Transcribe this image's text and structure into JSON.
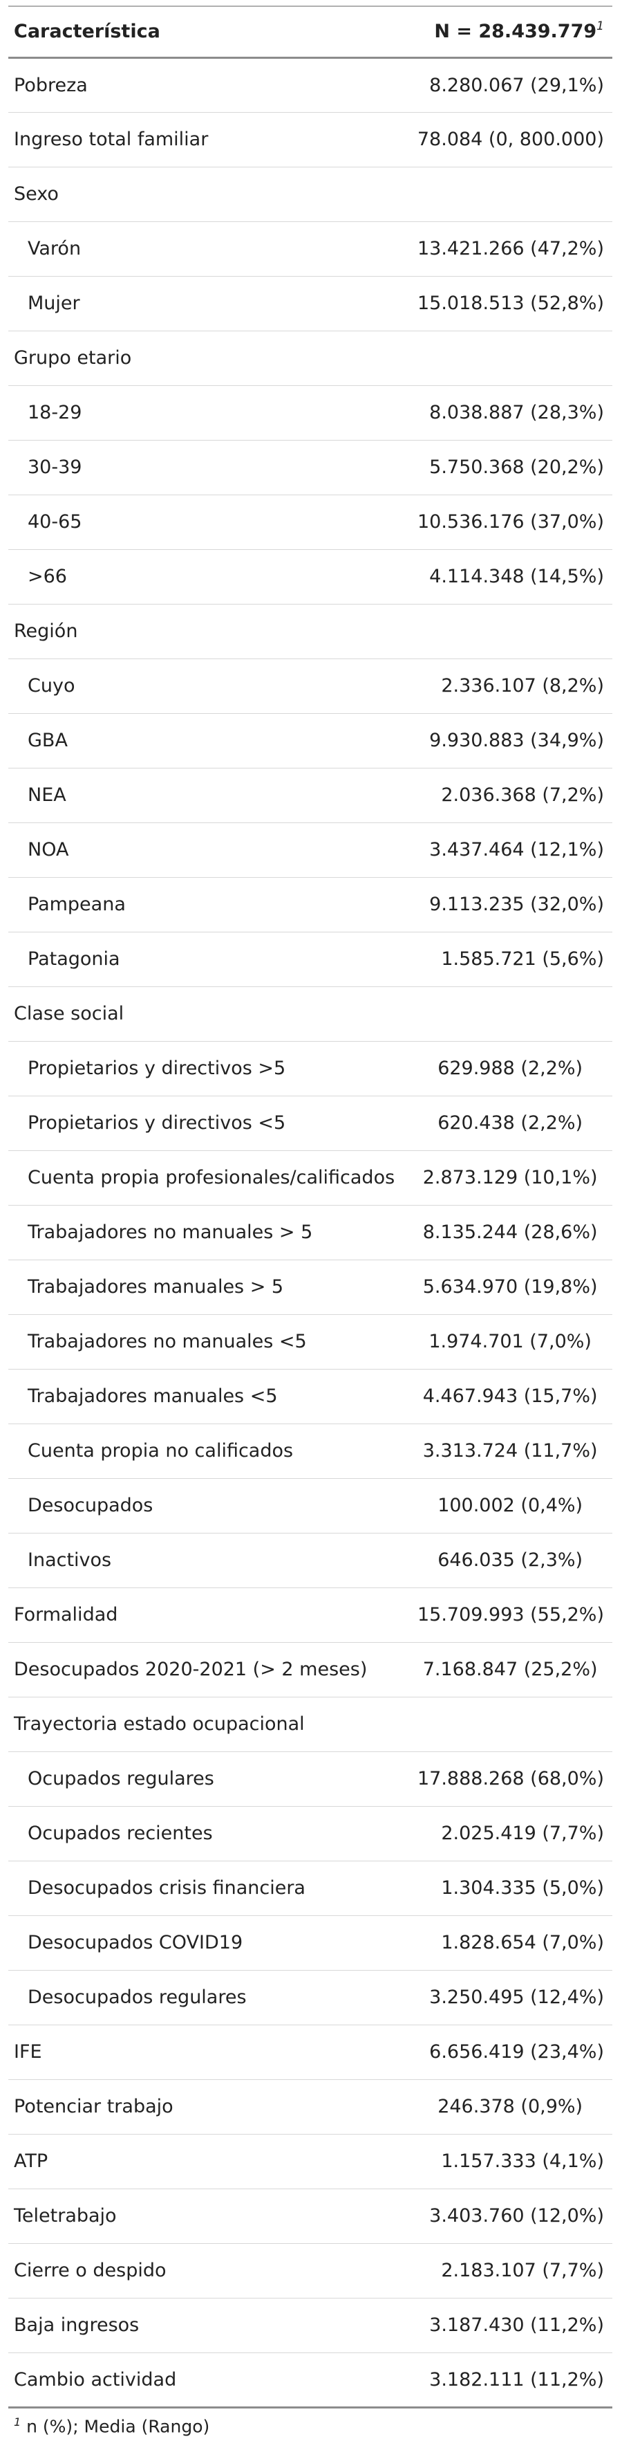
{
  "table": {
    "header": {
      "characteristic": "Característica",
      "total": "N = 28.439.779",
      "total_marker": "1"
    },
    "rows": [
      {
        "label": "Pobreza",
        "value": "8.280.067 (29,1%)",
        "indent": false,
        "align": "right"
      },
      {
        "label": "Ingreso total familiar",
        "value": "78.084 (0, 800.000)",
        "indent": false,
        "align": "right"
      },
      {
        "label": "Sexo",
        "value": "",
        "indent": false,
        "align": "right"
      },
      {
        "label": "Varón",
        "value": "13.421.266 (47,2%)",
        "indent": true,
        "align": "right"
      },
      {
        "label": "Mujer",
        "value": "15.018.513 (52,8%)",
        "indent": true,
        "align": "right"
      },
      {
        "label": "Grupo etario",
        "value": "",
        "indent": false,
        "align": "right"
      },
      {
        "label": "18-29",
        "value": "8.038.887 (28,3%)",
        "indent": true,
        "align": "right"
      },
      {
        "label": "30-39",
        "value": "5.750.368 (20,2%)",
        "indent": true,
        "align": "right"
      },
      {
        "label": "40-65",
        "value": "10.536.176 (37,0%)",
        "indent": true,
        "align": "right"
      },
      {
        "label": ">66",
        "value": "4.114.348 (14,5%)",
        "indent": true,
        "align": "right"
      },
      {
        "label": "Región",
        "value": "",
        "indent": false,
        "align": "right"
      },
      {
        "label": "Cuyo",
        "value": "2.336.107 (8,2%)",
        "indent": true,
        "align": "right"
      },
      {
        "label": "GBA",
        "value": "9.930.883 (34,9%)",
        "indent": true,
        "align": "right"
      },
      {
        "label": "NEA",
        "value": "2.036.368 (7,2%)",
        "indent": true,
        "align": "right"
      },
      {
        "label": "NOA",
        "value": "3.437.464 (12,1%)",
        "indent": true,
        "align": "right"
      },
      {
        "label": "Pampeana",
        "value": "9.113.235 (32,0%)",
        "indent": true,
        "align": "right"
      },
      {
        "label": "Patagonia",
        "value": "1.585.721 (5,6%)",
        "indent": true,
        "align": "right"
      },
      {
        "label": "Clase social",
        "value": "",
        "indent": false,
        "align": "right"
      },
      {
        "label": "Propietarios y directivos >5",
        "value": "629.988 (2,2%)",
        "indent": true,
        "align": "center"
      },
      {
        "label": "Propietarios y directivos <5",
        "value": "620.438 (2,2%)",
        "indent": true,
        "align": "center"
      },
      {
        "label": "Cuenta propia profesionales/calificados",
        "value": "2.873.129 (10,1%)",
        "indent": true,
        "align": "center"
      },
      {
        "label": "Trabajadores no manuales > 5",
        "value": "8.135.244 (28,6%)",
        "indent": true,
        "align": "center"
      },
      {
        "label": "Trabajadores manuales > 5",
        "value": "5.634.970 (19,8%)",
        "indent": true,
        "align": "center"
      },
      {
        "label": "Trabajadores no manuales <5",
        "value": "1.974.701 (7,0%)",
        "indent": true,
        "align": "center"
      },
      {
        "label": "Trabajadores manuales <5",
        "value": "4.467.943 (15,7%)",
        "indent": true,
        "align": "center"
      },
      {
        "label": "Cuenta propia no calificados",
        "value": "3.313.724 (11,7%)",
        "indent": true,
        "align": "center"
      },
      {
        "label": "Desocupados",
        "value": "100.002 (0,4%)",
        "indent": true,
        "align": "center"
      },
      {
        "label": "Inactivos",
        "value": "646.035 (2,3%)",
        "indent": true,
        "align": "center"
      },
      {
        "label": "Formalidad",
        "value": "15.709.993 (55,2%)",
        "indent": false,
        "align": "right"
      },
      {
        "label": "Desocupados 2020-2021 (> 2 meses)",
        "value": "7.168.847 (25,2%)",
        "indent": false,
        "align": "center"
      },
      {
        "label": "Trayectoria estado ocupacional",
        "value": "",
        "indent": false,
        "align": "right"
      },
      {
        "label": "Ocupados regulares",
        "value": "17.888.268 (68,0%)",
        "indent": true,
        "align": "right"
      },
      {
        "label": "Ocupados recientes",
        "value": "2.025.419 (7,7%)",
        "indent": true,
        "align": "right"
      },
      {
        "label": "Desocupados crisis financiera",
        "value": "1.304.335 (5,0%)",
        "indent": true,
        "align": "right"
      },
      {
        "label": "Desocupados COVID19",
        "value": "1.828.654 (7,0%)",
        "indent": true,
        "align": "right"
      },
      {
        "label": "Desocupados regulares",
        "value": "3.250.495 (12,4%)",
        "indent": true,
        "align": "right"
      },
      {
        "label": "IFE",
        "value": "6.656.419 (23,4%)",
        "indent": false,
        "align": "right"
      },
      {
        "label": "Potenciar trabajo",
        "value": "246.378 (0,9%)",
        "indent": false,
        "align": "center"
      },
      {
        "label": "ATP",
        "value": "1.157.333 (4,1%)",
        "indent": false,
        "align": "right"
      },
      {
        "label": "Teletrabajo",
        "value": "3.403.760 (12,0%)",
        "indent": false,
        "align": "right"
      },
      {
        "label": "Cierre o despido",
        "value": "2.183.107 (7,7%)",
        "indent": false,
        "align": "right"
      },
      {
        "label": "Baja ingresos",
        "value": "3.187.430 (11,2%)",
        "indent": false,
        "align": "right"
      },
      {
        "label": "Cambio actividad",
        "value": "3.182.111 (11,2%)",
        "indent": false,
        "align": "right"
      }
    ],
    "footnote": {
      "marker": "1",
      "text": " n (%); Media (Rango)"
    }
  }
}
